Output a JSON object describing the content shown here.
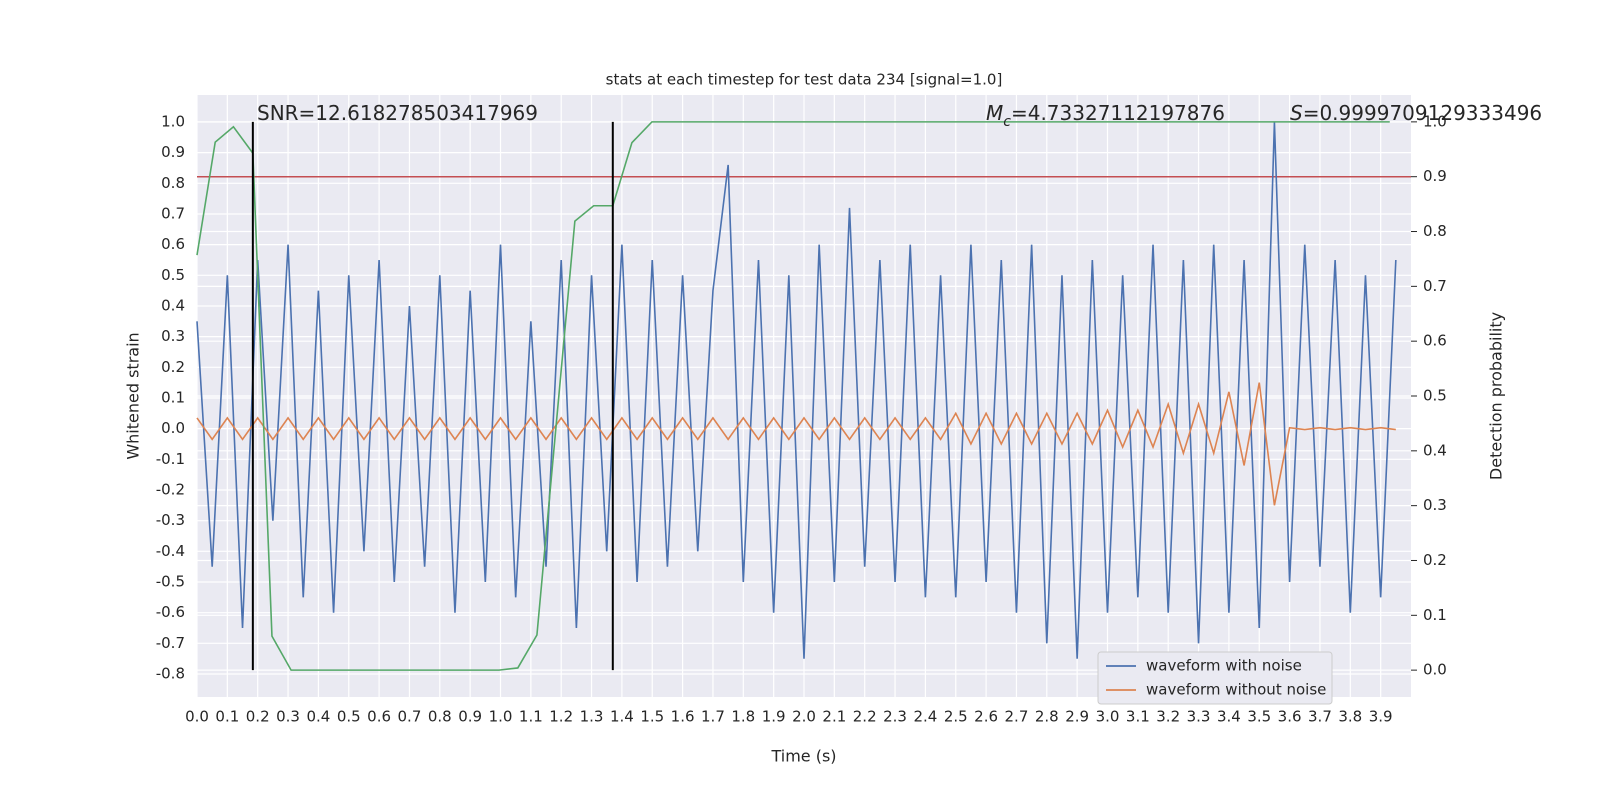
{
  "chart_data": {
    "type": "line",
    "title": "stats at each timestep for test data 234 [signal=1.0]",
    "xlabel": "Time (s)",
    "ylabel": "Whitened strain",
    "y2label": "Detection probability",
    "annotations": [
      {
        "parts": [
          {
            "text": "SNR=12.618278503417969"
          }
        ]
      },
      {
        "parts": [
          {
            "text": "M",
            "style": "italic"
          },
          {
            "text": "c",
            "style": "sub"
          },
          {
            "text": "=4.73327112197876"
          }
        ]
      },
      {
        "parts": [
          {
            "text": "S",
            "style": "italic"
          },
          {
            "text": "=0.9999709129333496"
          }
        ]
      }
    ],
    "xlim": [
      0,
      4.0
    ],
    "ylim": [
      -0.875,
      1.088
    ],
    "y2lim": [
      -0.049,
      1.049
    ],
    "grid": true,
    "legend": "lower right",
    "xticks": [
      {
        "value": 0,
        "label": "0.0"
      },
      0.1,
      0.2,
      0.3,
      0.4,
      0.5,
      0.6,
      0.7,
      0.8,
      0.9,
      {
        "value": 1,
        "label": "1.0"
      },
      1.1,
      1.2,
      1.3,
      1.4,
      1.5,
      1.6,
      1.7,
      1.8,
      1.9,
      {
        "value": 2,
        "label": "2.0"
      },
      2.1,
      2.2,
      2.3,
      2.4,
      2.5,
      2.6,
      2.7,
      2.8,
      2.9,
      {
        "value": 3,
        "label": "3.0"
      },
      3.1,
      3.2,
      3.3,
      3.4,
      3.5,
      3.6,
      3.7,
      3.8,
      3.9
    ],
    "yticks": [
      -0.8,
      -0.7,
      -0.6,
      -0.5,
      -0.4,
      -0.3,
      -0.2,
      -0.1,
      {
        "value": 0,
        "label": "0.0"
      },
      0.1,
      0.2,
      0.3,
      0.4,
      0.5,
      0.6,
      0.7,
      0.8,
      0.9,
      {
        "value": 1,
        "label": "1.0"
      }
    ],
    "y2ticks": [
      {
        "value": 0,
        "label": "0.0"
      },
      0.1,
      0.2,
      0.3,
      0.4,
      0.5,
      0.6,
      0.7,
      0.8,
      0.9,
      {
        "value": 1,
        "label": "1.0"
      }
    ],
    "x": [
      0,
      0.05,
      0.1,
      0.15,
      0.2,
      0.25,
      0.3,
      0.35,
      0.4,
      0.45,
      0.5,
      0.55,
      0.6,
      0.65,
      0.7,
      0.75,
      0.8,
      0.85,
      0.9,
      0.95,
      1.0,
      1.05,
      1.1,
      1.15,
      1.2,
      1.25,
      1.3,
      1.35,
      1.4,
      1.45,
      1.5,
      1.55,
      1.6,
      1.65,
      1.7,
      1.75,
      1.8,
      1.85,
      1.9,
      1.95,
      2.0,
      2.05,
      2.1,
      2.15,
      2.2,
      2.25,
      2.3,
      2.35,
      2.4,
      2.45,
      2.5,
      2.55,
      2.6,
      2.65,
      2.7,
      2.75,
      2.8,
      2.85,
      2.9,
      2.95,
      3.0,
      3.05,
      3.1,
      3.15,
      3.2,
      3.25,
      3.3,
      3.35,
      3.4,
      3.45,
      3.5,
      3.55,
      3.6,
      3.65,
      3.7,
      3.75,
      3.8,
      3.85,
      3.9,
      3.95
    ],
    "series": [
      {
        "name": "waveform with noise",
        "color": "#4c72b0",
        "axis": "y",
        "values": [
          0.35,
          -0.45,
          0.5,
          -0.65,
          0.55,
          -0.3,
          0.6,
          -0.55,
          0.45,
          -0.6,
          0.5,
          -0.4,
          0.55,
          -0.5,
          0.4,
          -0.45,
          0.5,
          -0.6,
          0.45,
          -0.5,
          0.6,
          -0.55,
          0.35,
          -0.45,
          0.55,
          -0.65,
          0.5,
          -0.4,
          0.6,
          -0.5,
          0.55,
          -0.45,
          0.5,
          -0.4,
          0.45,
          0.86,
          -0.5,
          0.55,
          -0.6,
          0.5,
          -0.75,
          0.6,
          -0.5,
          0.72,
          -0.45,
          0.55,
          -0.5,
          0.6,
          -0.55,
          0.5,
          -0.55,
          0.6,
          -0.5,
          0.55,
          -0.6,
          0.6,
          -0.7,
          0.5,
          -0.75,
          0.55,
          -0.6,
          0.5,
          -0.55,
          0.6,
          -0.6,
          0.55,
          -0.7,
          0.6,
          -0.6,
          0.55,
          -0.65,
          1.0,
          -0.5,
          0.6,
          -0.45,
          0.55,
          -0.6,
          0.5,
          -0.55,
          0.55
        ]
      },
      {
        "name": "waveform without noise",
        "color": "#dd8452",
        "axis": "y",
        "values": [
          0.035,
          -0.035,
          0.035,
          -0.035,
          0.035,
          -0.035,
          0.035,
          -0.035,
          0.035,
          -0.035,
          0.035,
          -0.035,
          0.035,
          -0.035,
          0.035,
          -0.035,
          0.035,
          -0.035,
          0.035,
          -0.035,
          0.035,
          -0.035,
          0.035,
          -0.035,
          0.035,
          -0.035,
          0.035,
          -0.035,
          0.035,
          -0.035,
          0.035,
          -0.035,
          0.035,
          -0.035,
          0.035,
          -0.035,
          0.035,
          -0.035,
          0.035,
          -0.035,
          0.035,
          -0.035,
          0.035,
          -0.035,
          0.035,
          -0.035,
          0.035,
          -0.035,
          0.035,
          -0.035,
          0.05,
          -0.05,
          0.05,
          -0.05,
          0.05,
          -0.05,
          0.05,
          -0.05,
          0.05,
          -0.05,
          0.06,
          -0.06,
          0.06,
          -0.06,
          0.08,
          -0.08,
          0.08,
          -0.08,
          0.12,
          -0.12,
          0.15,
          -0.25,
          0.003,
          -0.003,
          0.003,
          -0.003,
          0.003,
          -0.003,
          0.003,
          -0.003
        ]
      },
      {
        "color": "#55a868",
        "axis": "y2",
        "x": [
          0,
          0.06,
          0.12,
          0.184,
          0.247,
          0.31,
          0.995,
          1.057,
          1.12,
          1.245,
          1.307,
          1.37,
          1.433,
          1.499,
          3.93
        ],
        "values": [
          0.757,
          0.963,
          0.991,
          0.943,
          0.062,
          0,
          0,
          0.004,
          0.064,
          0.819,
          0.847,
          0.847,
          0.962,
          1.0,
          1.0
        ]
      }
    ],
    "hlines": [
      {
        "axis": "y2",
        "value": 0.9,
        "color": "#c44e52"
      }
    ],
    "vlines": [
      {
        "x": 0.184,
        "y2range": [
          0,
          1
        ],
        "color": "#000000"
      },
      {
        "x": 1.37,
        "y2range": [
          0,
          1
        ],
        "color": "#000000"
      }
    ]
  }
}
